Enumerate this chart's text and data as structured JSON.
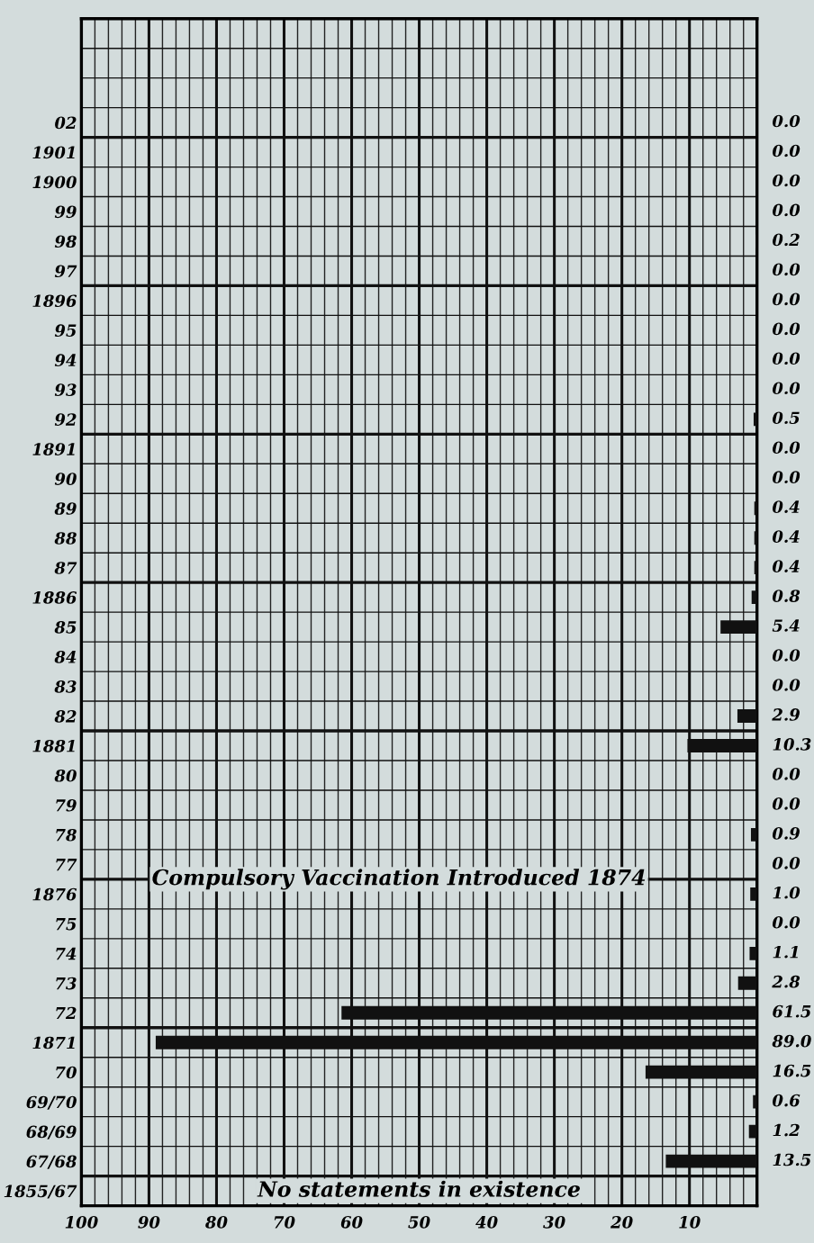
{
  "chart_data": {
    "type": "bar",
    "orientation": "horizontal",
    "categories": [
      null,
      null,
      null,
      "02",
      "1901",
      "1900",
      "99",
      "98",
      "97",
      "1896",
      "95",
      "94",
      "93",
      "92",
      "1891",
      "90",
      "89",
      "88",
      "87",
      "1886",
      "85",
      "84",
      "83",
      "82",
      "1881",
      "80",
      "79",
      "78",
      "77",
      "1876",
      "75",
      "74",
      "73",
      "72",
      "1871",
      "70",
      "69/70",
      "68/69",
      "67/68",
      "1855/67"
    ],
    "values": [
      null,
      null,
      null,
      0.0,
      0.0,
      0.0,
      0.0,
      0.2,
      0.0,
      0.0,
      0.0,
      0.0,
      0.0,
      0.5,
      0.0,
      0.0,
      0.4,
      0.4,
      0.4,
      0.8,
      5.4,
      0.0,
      0.0,
      2.9,
      10.3,
      0.0,
      0.0,
      0.9,
      0.0,
      1.0,
      0.0,
      1.1,
      2.8,
      61.5,
      89.0,
      16.5,
      0.6,
      1.2,
      13.5,
      null
    ],
    "value_labels": [
      null,
      null,
      null,
      "0.0",
      "0.0",
      "0.0",
      "0.0",
      "0.2",
      "0.0",
      "0.0",
      "0.0",
      "0.0",
      "0.0",
      "0.5",
      "0.0",
      "0.0",
      "0.4",
      "0.4",
      "0.4",
      "0.8",
      "5.4",
      "0.0",
      "0.0",
      "2.9",
      "10.3",
      "0.0",
      "0.0",
      "0.9",
      "0.0",
      "1.0",
      "0.0",
      "1.1",
      "2.8",
      "61.5",
      "89.0",
      "16.5",
      "0.6",
      "1.2",
      "13.5",
      null
    ],
    "color": "#111111",
    "xlim": [
      100,
      0
    ],
    "xticks": [
      100,
      90,
      80,
      70,
      60,
      50,
      40,
      30,
      20,
      10,
      {
        "value": 0,
        "label": null
      }
    ],
    "grid": true,
    "annotations": [
      "Compulsory Vaccination Introduced 1874",
      "No statements in existence"
    ]
  }
}
